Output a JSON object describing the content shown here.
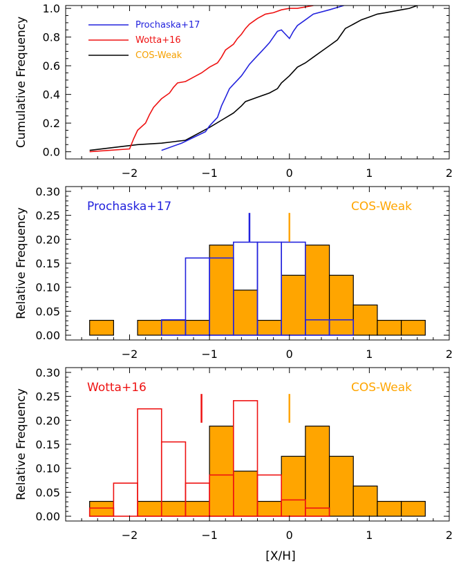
{
  "figure": {
    "xlabel": "[X/H]"
  },
  "chart_data": [
    {
      "type": "line",
      "ylabel": "Cumulative Frequency",
      "xlim": [
        -2.8,
        2.0
      ],
      "ylim": [
        -0.05,
        1.02
      ],
      "xticks": [
        -2,
        -1,
        0,
        1,
        2
      ],
      "xticklabels": [
        "−2",
        "−1",
        "0",
        "1",
        "2"
      ],
      "yticks": [
        0.0,
        0.2,
        0.4,
        0.6,
        0.8,
        1.0
      ],
      "yticklabels": [
        "0.0",
        "0.2",
        "0.4",
        "0.6",
        "0.8",
        "1.0"
      ],
      "legend": {
        "placement": "top-left"
      },
      "series": [
        {
          "name": "Prochaska+17",
          "color": "#2222dd",
          "x": [
            -1.6,
            -1.35,
            -1.2,
            -1.05,
            -1.0,
            -0.9,
            -0.85,
            -0.8,
            -0.75,
            -0.7,
            -0.65,
            -0.6,
            -0.55,
            -0.5,
            -0.45,
            -0.4,
            -0.35,
            -0.3,
            -0.25,
            -0.2,
            -0.15,
            -0.1,
            -0.05,
            0.0,
            0.05,
            0.1,
            0.2,
            0.3,
            0.5,
            0.68
          ],
          "y": [
            0.01,
            0.06,
            0.1,
            0.14,
            0.18,
            0.24,
            0.32,
            0.38,
            0.44,
            0.47,
            0.5,
            0.53,
            0.57,
            0.61,
            0.64,
            0.67,
            0.7,
            0.73,
            0.76,
            0.8,
            0.84,
            0.85,
            0.82,
            0.79,
            0.84,
            0.88,
            0.92,
            0.96,
            0.99,
            1.02
          ]
        },
        {
          "name": "Wotta+16",
          "color": "#ee1111",
          "x": [
            -2.5,
            -2.0,
            -1.95,
            -1.9,
            -1.8,
            -1.75,
            -1.7,
            -1.65,
            -1.6,
            -1.5,
            -1.45,
            -1.4,
            -1.3,
            -1.2,
            -1.1,
            -1.0,
            -0.9,
            -0.85,
            -0.8,
            -0.7,
            -0.65,
            -0.6,
            -0.55,
            -0.5,
            -0.45,
            -0.4,
            -0.3,
            -0.2,
            -0.1,
            0.0,
            0.1,
            0.2,
            0.3
          ],
          "y": [
            0.0,
            0.02,
            0.09,
            0.15,
            0.2,
            0.26,
            0.31,
            0.34,
            0.37,
            0.41,
            0.45,
            0.48,
            0.49,
            0.52,
            0.55,
            0.59,
            0.62,
            0.66,
            0.71,
            0.75,
            0.79,
            0.82,
            0.86,
            0.89,
            0.91,
            0.93,
            0.96,
            0.97,
            0.99,
            1.0,
            1.0,
            1.01,
            1.02
          ]
        },
        {
          "name": "COS-Weak",
          "color": "#000000",
          "label_color": "#f5a000",
          "x": [
            -2.5,
            -2.2,
            -1.9,
            -1.6,
            -1.3,
            -1.0,
            -0.85,
            -0.7,
            -0.6,
            -0.55,
            -0.4,
            -0.25,
            -0.15,
            -0.1,
            0.0,
            0.1,
            0.2,
            0.3,
            0.4,
            0.5,
            0.6,
            0.65,
            0.7,
            0.8,
            0.9,
            1.0,
            1.1,
            1.2,
            1.3,
            1.4,
            1.5,
            1.6
          ],
          "y": [
            0.01,
            0.03,
            0.05,
            0.06,
            0.08,
            0.17,
            0.22,
            0.27,
            0.32,
            0.35,
            0.38,
            0.41,
            0.44,
            0.48,
            0.53,
            0.59,
            0.62,
            0.66,
            0.7,
            0.74,
            0.78,
            0.82,
            0.86,
            0.89,
            0.92,
            0.94,
            0.96,
            0.97,
            0.98,
            0.99,
            1.0,
            1.02
          ]
        }
      ]
    },
    {
      "type": "bar",
      "ylabel": "Relative Frequency",
      "xlim": [
        -2.8,
        2.0
      ],
      "ylim": [
        -0.01,
        0.31
      ],
      "xticks": [
        -2,
        -1,
        0,
        1,
        2
      ],
      "xticklabels": [
        "−2",
        "−1",
        "0",
        "1",
        "2"
      ],
      "yticks": [
        0.0,
        0.05,
        0.1,
        0.15,
        0.2,
        0.25,
        0.3
      ],
      "yticklabels": [
        "0.00",
        "0.05",
        "0.10",
        "0.15",
        "0.20",
        "0.25",
        "0.30"
      ],
      "series": [
        {
          "name": "COS-Weak",
          "style": "filled",
          "fill": "#ffa500",
          "edge": "#000000",
          "bin_edges": [
            -2.5,
            -2.2,
            -1.9,
            -1.6,
            -1.3,
            -1.0,
            -0.7,
            -0.4,
            -0.1,
            0.2,
            0.5,
            0.8,
            1.1,
            1.4,
            1.7
          ],
          "values": [
            0.031,
            0.0,
            0.031,
            0.031,
            0.031,
            0.188,
            0.094,
            0.031,
            0.125,
            0.188,
            0.125,
            0.063,
            0.031,
            0.031
          ]
        },
        {
          "name": "Prochaska+17",
          "style": "outline",
          "edge": "#2222dd",
          "bin_edges": [
            -1.6,
            -1.3,
            -1.0,
            -0.7,
            -0.4,
            -0.1,
            0.2,
            0.5,
            0.8
          ],
          "values": [
            0.032,
            0.161,
            0.161,
            0.194,
            0.194,
            0.194,
            0.032,
            0.032
          ]
        }
      ],
      "markers": [
        {
          "label": "Prochaska+17",
          "x": -0.5,
          "color": "#2222dd"
        },
        {
          "label": "COS-Weak",
          "x": 0.0,
          "color": "#ffa500"
        }
      ]
    },
    {
      "type": "bar",
      "ylabel": "Relative Frequency",
      "xlim": [
        -2.8,
        2.0
      ],
      "ylim": [
        -0.01,
        0.31
      ],
      "xticks": [
        -2,
        -1,
        0,
        1,
        2
      ],
      "xticklabels": [
        "−2",
        "−1",
        "0",
        "1",
        "2"
      ],
      "yticks": [
        0.0,
        0.05,
        0.1,
        0.15,
        0.2,
        0.25,
        0.3
      ],
      "yticklabels": [
        "0.00",
        "0.05",
        "0.10",
        "0.15",
        "0.20",
        "0.25",
        "0.30"
      ],
      "series": [
        {
          "name": "COS-Weak",
          "style": "filled",
          "fill": "#ffa500",
          "edge": "#000000",
          "bin_edges": [
            -2.5,
            -2.2,
            -1.9,
            -1.6,
            -1.3,
            -1.0,
            -0.7,
            -0.4,
            -0.1,
            0.2,
            0.5,
            0.8,
            1.1,
            1.4,
            1.7
          ],
          "values": [
            0.031,
            0.0,
            0.031,
            0.031,
            0.031,
            0.188,
            0.094,
            0.031,
            0.125,
            0.188,
            0.125,
            0.063,
            0.031,
            0.031
          ]
        },
        {
          "name": "Wotta+16",
          "style": "outline",
          "edge": "#ee1111",
          "bin_edges": [
            -2.5,
            -2.2,
            -1.9,
            -1.6,
            -1.3,
            -1.0,
            -0.7,
            -0.4,
            -0.1,
            0.2,
            0.5
          ],
          "values": [
            0.017,
            0.069,
            0.224,
            0.155,
            0.069,
            0.086,
            0.241,
            0.086,
            0.034,
            0.017
          ]
        }
      ],
      "markers": [
        {
          "label": "Wotta+16",
          "x": -1.1,
          "color": "#ee1111"
        },
        {
          "label": "COS-Weak",
          "x": 0.0,
          "color": "#ffa500"
        }
      ]
    }
  ]
}
